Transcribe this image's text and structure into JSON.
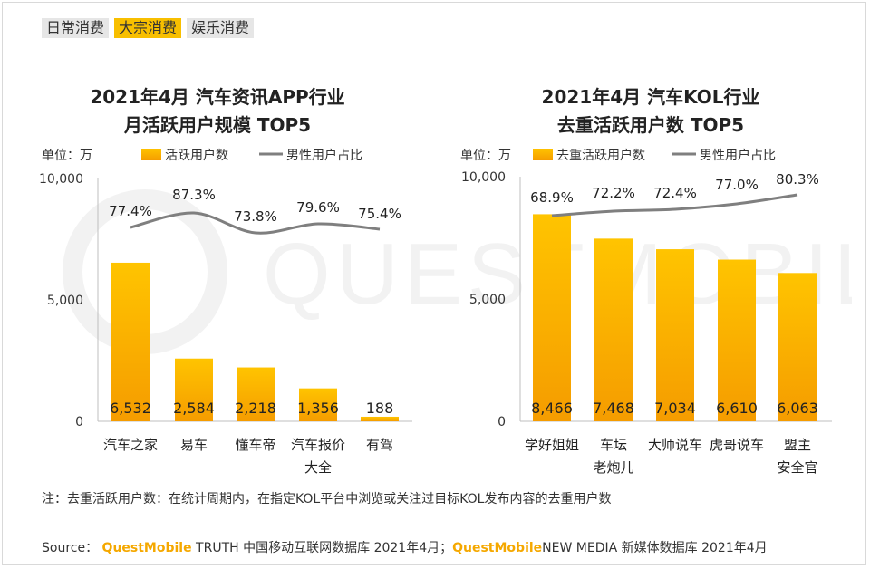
{
  "tabs": [
    {
      "label": "日常消费",
      "active": false
    },
    {
      "label": "大宗消费",
      "active": true
    },
    {
      "label": "娱乐消费",
      "active": false
    }
  ],
  "watermark_text": "QUESTMOBILE",
  "colors": {
    "bar_top": "#ffc400",
    "bar_bottom": "#f59c00",
    "line": "#7f7f7f",
    "brand": "#f5a800"
  },
  "chart_data": [
    {
      "type": "bar",
      "title": [
        "2021年4月 汽车资讯APP行业",
        "月活跃用户规模 TOP5"
      ],
      "unit_label": "单位：万",
      "legend": {
        "bar": "活跃用户数",
        "line": "男性用户占比"
      },
      "categories": [
        [
          "汽车之家"
        ],
        [
          "易车"
        ],
        [
          "懂车帝"
        ],
        [
          "汽车报价",
          "大全"
        ],
        [
          "有驾"
        ]
      ],
      "series": [
        {
          "name": "活跃用户数",
          "values": [
            6532,
            2584,
            2218,
            1356,
            188
          ]
        },
        {
          "name": "男性用户占比",
          "values": [
            77.4,
            87.3,
            73.8,
            79.6,
            75.4
          ]
        }
      ],
      "value_labels": [
        "6,532",
        "2,584",
        "2,218",
        "1,356",
        "188"
      ],
      "pct_labels": [
        "77.4%",
        "87.3%",
        "73.8%",
        "79.6%",
        "75.4%"
      ],
      "y_ticks": [
        "10,000",
        "5,000",
        "0"
      ],
      "ylim": [
        0,
        10000
      ]
    },
    {
      "type": "bar",
      "title": [
        "2021年4月 汽车KOL行业",
        "去重活跃用户数 TOP5"
      ],
      "unit_label": "单位：万",
      "legend": {
        "bar": "去重活跃用户数",
        "line": "男性用户占比"
      },
      "categories": [
        [
          "学好姐姐"
        ],
        [
          "车坛",
          "老炮儿"
        ],
        [
          "大师说车"
        ],
        [
          "虎哥说车"
        ],
        [
          "盟主",
          "安全官"
        ]
      ],
      "series": [
        {
          "name": "去重活跃用户数",
          "values": [
            8466,
            7468,
            7034,
            6610,
            6063
          ]
        },
        {
          "name": "男性用户占比",
          "values": [
            68.9,
            72.2,
            72.4,
            77.0,
            80.3
          ]
        }
      ],
      "value_labels": [
        "8,466",
        "7,468",
        "7,034",
        "6,610",
        "6,063"
      ],
      "pct_labels": [
        "68.9%",
        "72.2%",
        "72.4%",
        "77.0%",
        "80.3%"
      ],
      "y_ticks": [
        "10,000",
        "5,000",
        "0"
      ],
      "ylim": [
        0,
        10000
      ]
    }
  ],
  "note": "注：去重活跃用户数：在统计周期内，在指定KOL平台中浏览或关注过目标KOL发布内容的去重用户数",
  "source": {
    "prefix": "Source： ",
    "brand1": "QuestMobile",
    "text1": " TRUTH 中国移动互联网数据库 2021年4月；",
    "brand2": "QuestMobile",
    "text2": "NEW MEDIA 新媒体数据库 2021年4月"
  }
}
